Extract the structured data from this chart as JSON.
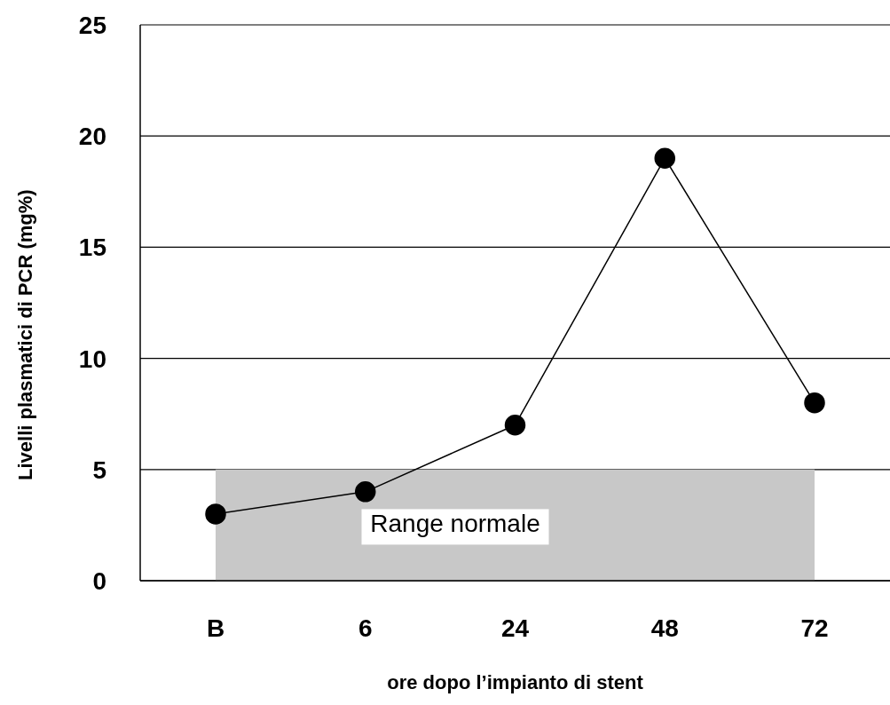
{
  "chart_data": {
    "type": "line",
    "xlabel": "ore dopo l’impianto di stent",
    "ylabel": "Livelli plasmatici di PCR (mg%)",
    "categories": [
      "B",
      "6",
      "24",
      "48",
      "72"
    ],
    "series": [
      {
        "color": "#000000",
        "values": [
          3,
          4,
          7,
          19,
          8
        ]
      }
    ],
    "ylim": [
      0,
      25
    ],
    "yticks": [
      0,
      5,
      10,
      15,
      20,
      25
    ],
    "grid": "y",
    "marker": "circle",
    "line_style": "solid",
    "bands": [
      {
        "axis": "y",
        "from": 0,
        "to": 5,
        "label": "Range normale",
        "color": "#c8c8c8"
      }
    ]
  }
}
